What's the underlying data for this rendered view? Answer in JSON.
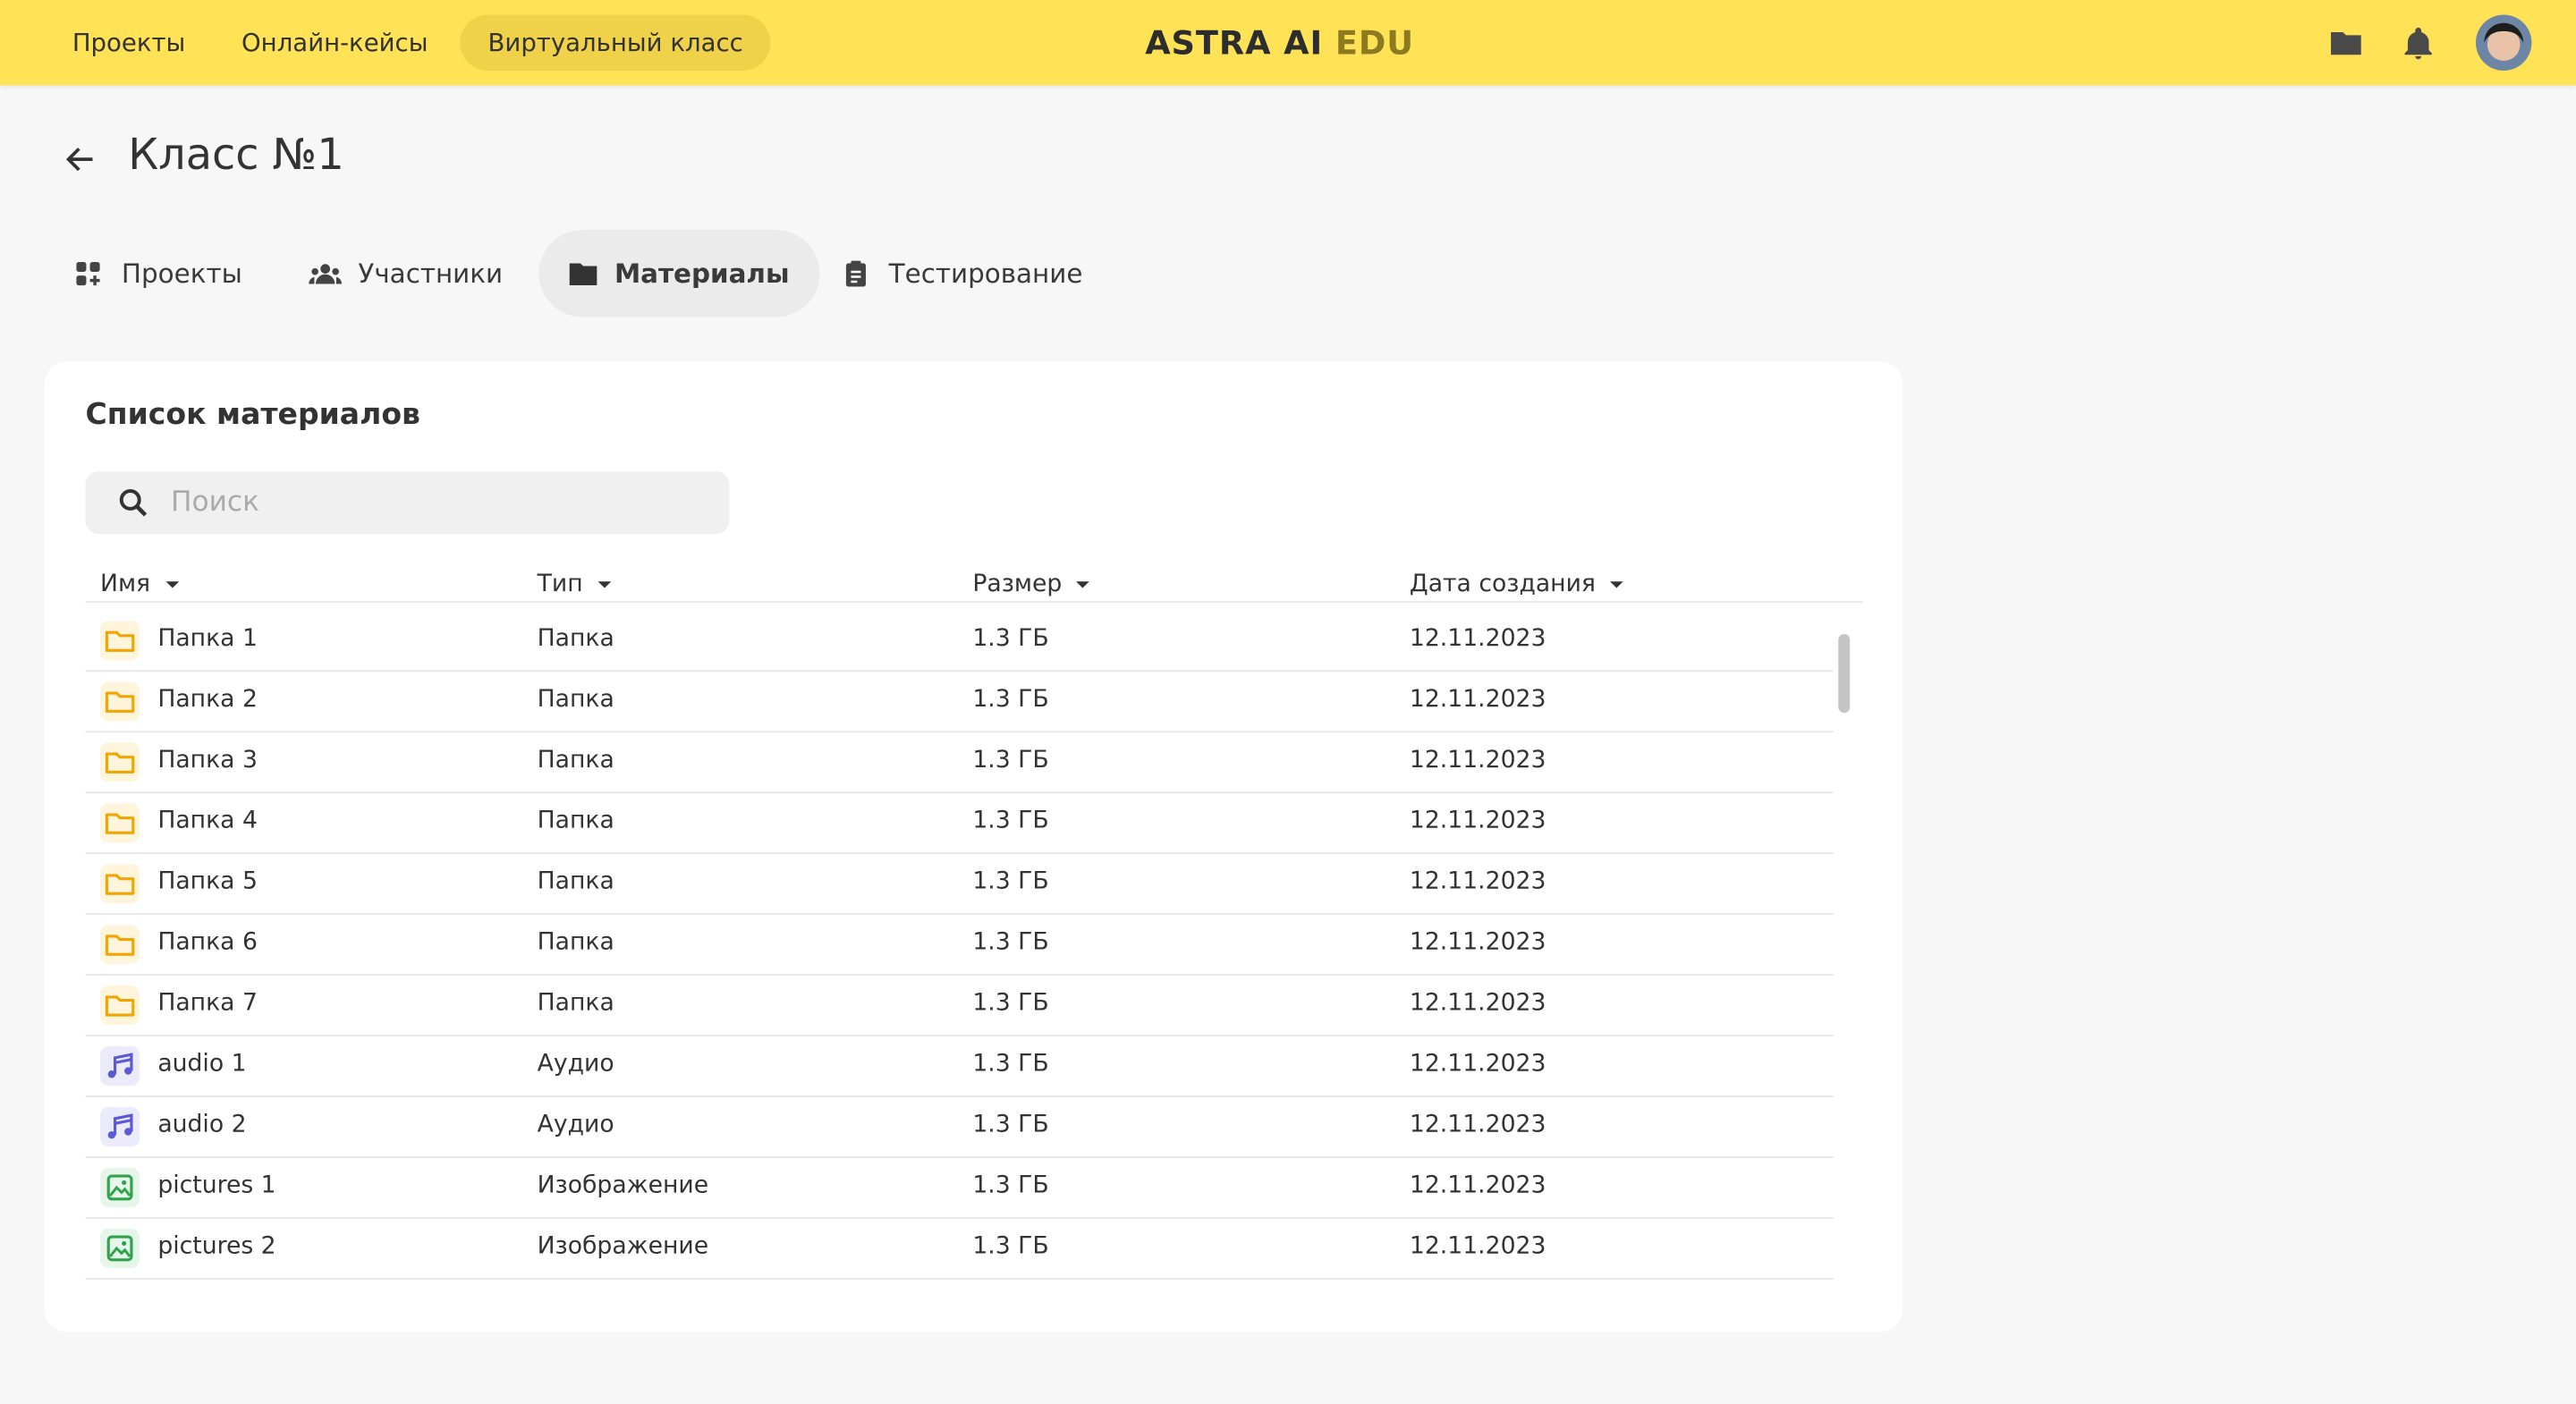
{
  "nav": {
    "items": [
      "Проекты",
      "Онлайн-кейсы",
      "Виртуальный класс"
    ],
    "logo": "ASTRA AI",
    "logo_accent": "EDU"
  },
  "page": {
    "title": "Класс №1",
    "tabs": [
      "Проекты",
      "Участники",
      "Материалы",
      "Тестирование"
    ]
  },
  "materials": {
    "title": "Список материалов",
    "search_placeholder": "Поиск",
    "columns": [
      "Имя",
      "Тип",
      "Размер",
      "Дата создания"
    ],
    "rows": [
      {
        "icon": "folder",
        "cells": [
          "Папка 1",
          "Папка",
          "1.3 ГБ",
          "12.11.2023"
        ]
      },
      {
        "icon": "folder",
        "cells": [
          "Папка 2",
          "Папка",
          "1.3 ГБ",
          "12.11.2023"
        ]
      },
      {
        "icon": "folder",
        "cells": [
          "Папка 3",
          "Папка",
          "1.3 ГБ",
          "12.11.2023"
        ]
      },
      {
        "icon": "folder",
        "cells": [
          "Папка 4",
          "Папка",
          "1.3 ГБ",
          "12.11.2023"
        ]
      },
      {
        "icon": "folder",
        "cells": [
          "Папка 5",
          "Папка",
          "1.3 ГБ",
          "12.11.2023"
        ]
      },
      {
        "icon": "folder",
        "cells": [
          "Папка 6",
          "Папка",
          "1.3 ГБ",
          "12.11.2023"
        ]
      },
      {
        "icon": "folder",
        "cells": [
          "Папка 7",
          "Папка",
          "1.3 ГБ",
          "12.11.2023"
        ]
      },
      {
        "icon": "audio",
        "cells": [
          "audio 1",
          "Аудио",
          "1.3 ГБ",
          "12.11.2023"
        ]
      },
      {
        "icon": "audio",
        "cells": [
          "audio 2",
          "Аудио",
          "1.3 ГБ",
          "12.11.2023"
        ]
      },
      {
        "icon": "image",
        "cells": [
          "pictures 1",
          "Изображение",
          "1.3 ГБ",
          "12.11.2023"
        ]
      },
      {
        "icon": "image",
        "cells": [
          "pictures 2",
          "Изображение",
          "1.3 ГБ",
          "12.11.2023"
        ]
      }
    ]
  }
}
